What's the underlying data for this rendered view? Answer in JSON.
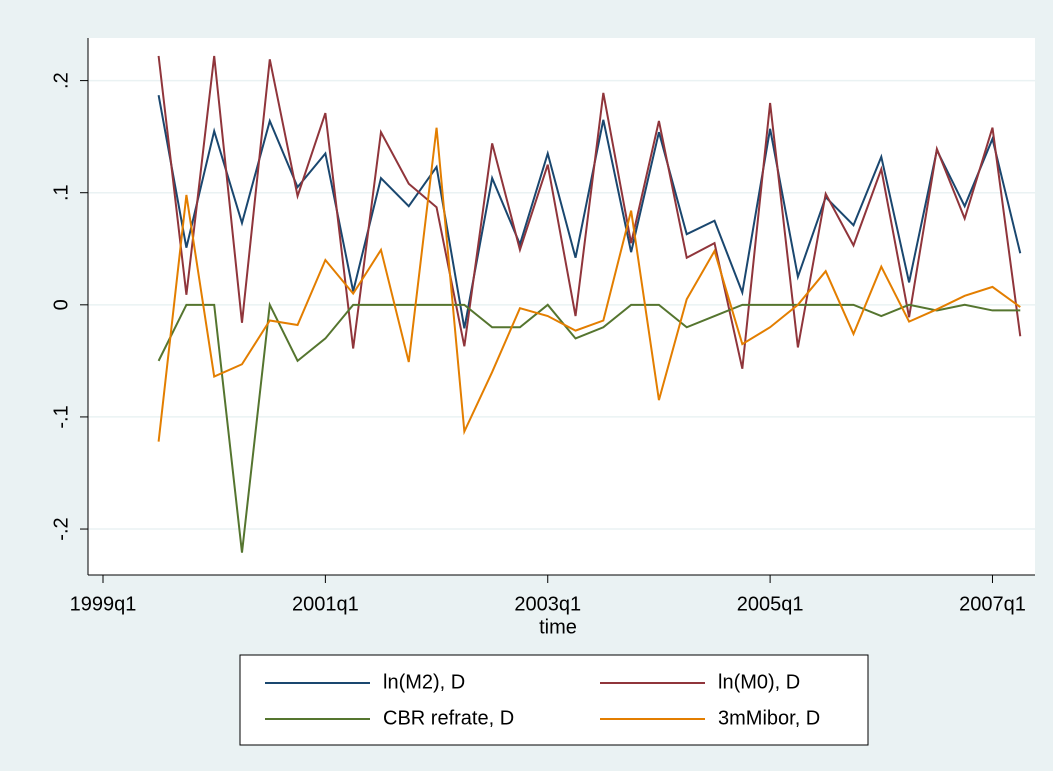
{
  "chart_data": {
    "type": "line",
    "x_label": "time",
    "x": [
      158,
      159,
      160,
      161,
      162,
      163,
      164,
      165,
      166,
      167,
      168,
      169,
      170,
      171,
      172,
      173,
      174,
      175,
      176,
      177,
      178,
      179,
      180,
      181,
      182,
      183,
      184,
      185,
      186,
      187,
      188,
      189
    ],
    "series": [
      {
        "name": "ln(M2), D",
        "color": "#1a476f",
        "values": [
          0.187,
          0.051,
          0.155,
          0.073,
          0.164,
          0.105,
          0.135,
          0.012,
          0.113,
          0.088,
          0.123,
          -0.021,
          0.113,
          0.054,
          0.135,
          0.042,
          0.165,
          0.047,
          0.154,
          0.063,
          0.075,
          0.011,
          0.157,
          0.025,
          0.096,
          0.071,
          0.132,
          0.02,
          0.138,
          0.088,
          0.148,
          0.046
        ]
      },
      {
        "name": "ln(M0), D",
        "color": "#90353b",
        "values": [
          0.222,
          0.009,
          0.222,
          -0.016,
          0.219,
          0.097,
          0.171,
          -0.039,
          0.154,
          0.108,
          0.087,
          -0.037,
          0.144,
          0.049,
          0.125,
          -0.01,
          0.189,
          0.055,
          0.164,
          0.042,
          0.055,
          -0.057,
          0.18,
          -0.038,
          0.099,
          0.053,
          0.121,
          -0.011,
          0.139,
          0.077,
          0.158,
          -0.028
        ]
      },
      {
        "name": "CBR refrate, D",
        "color": "#55752f",
        "values": [
          -0.05,
          0,
          0,
          -0.221,
          0,
          -0.05,
          -0.03,
          0,
          0,
          0,
          0,
          0,
          -0.02,
          -0.02,
          0,
          -0.03,
          -0.02,
          0,
          0,
          -0.02,
          -0.01,
          0,
          0,
          0,
          0,
          0,
          -0.01,
          0,
          -0.005,
          0,
          -0.005,
          -0.005
        ]
      },
      {
        "name": "3mMibor, D",
        "color": "#e37e00",
        "values": [
          -0.122,
          0.098,
          -0.064,
          -0.053,
          -0.014,
          -0.018,
          0.04,
          0.01,
          0.049,
          -0.051,
          0.158,
          -0.113,
          -0.06,
          -0.003,
          -0.01,
          -0.023,
          -0.014,
          0.084,
          -0.085,
          0.005,
          0.048,
          -0.035,
          -0.02,
          0,
          0.03,
          -0.026,
          0.034,
          -0.015,
          -0.004,
          0.008,
          0.016,
          -0.002
        ]
      }
    ],
    "xlim": [
      155.46,
      189.53
    ],
    "xticks": [
      {
        "value": 156,
        "label": "1999q1"
      },
      {
        "value": 164,
        "label": "2001q1"
      },
      {
        "value": 172,
        "label": "2003q1"
      },
      {
        "value": 180,
        "label": "2005q1"
      },
      {
        "value": 188,
        "label": "2007q1"
      }
    ],
    "ylim": [
      -0.241,
      0.238
    ],
    "yticks": [
      {
        "value": -0.2,
        "label": "-.2"
      },
      {
        "value": -0.1,
        "label": "-.1"
      },
      0,
      {
        "value": 0.1,
        "label": ".1"
      },
      {
        "value": 0.2,
        "label": ".2"
      }
    ],
    "grid": true
  }
}
